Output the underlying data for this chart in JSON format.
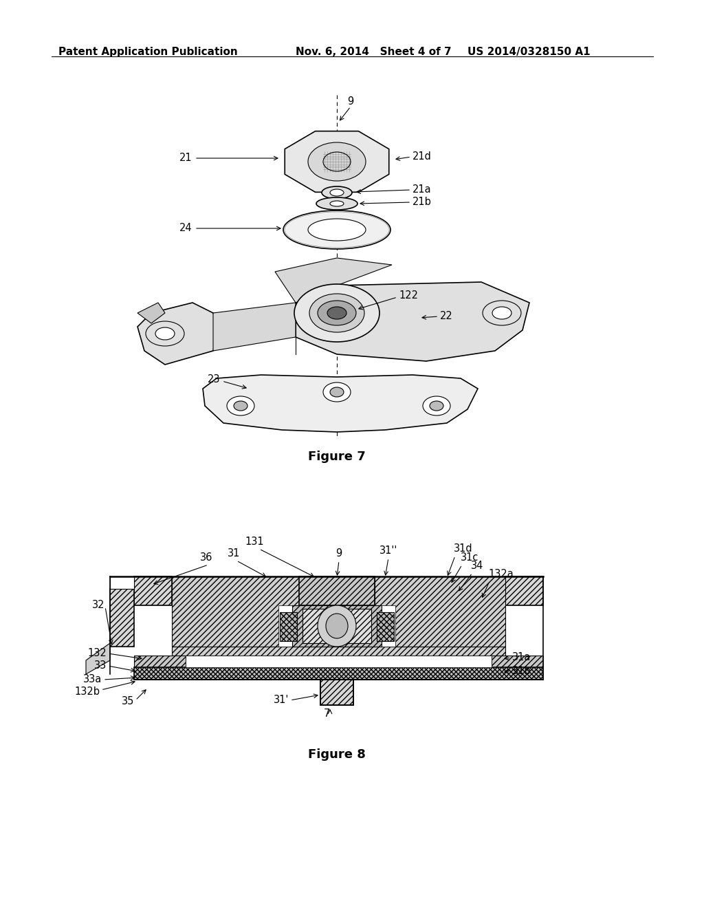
{
  "header_left": "Patent Application Publication",
  "header_mid": "Nov. 6, 2014   Sheet 4 of 7",
  "header_right": "US 2014/0328150 A1",
  "figure7_caption": "Figure 7",
  "figure8_caption": "Figure 8",
  "bg_color": "#ffffff",
  "line_color": "#000000",
  "header_fontsize": 11,
  "caption_fontsize": 13,
  "label_fontsize": 10.5
}
